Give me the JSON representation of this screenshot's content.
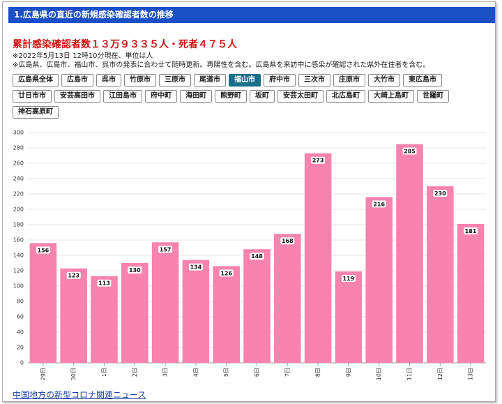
{
  "header": {
    "title": "1.広島県の直近の新規感染確認者数の推移"
  },
  "summary": "累計感染確認者数１３万９３３５人・死者４７５人",
  "notes": [
    "※2022年5月13日 12時10分現在、単位は人",
    "※広島県、広島市、福山市、呉市の発表に合わせて随時更新。再陽性を含む。広島県を来訪中に感染が確認された県外在住者を含む。"
  ],
  "buttons": [
    [
      "広島県全体",
      "広島市",
      "呉市",
      "竹原市",
      "三原市",
      "尾道市",
      "福山市",
      "府中市",
      "三次市",
      "庄原市",
      "大竹市",
      "東広島市"
    ],
    [
      "廿日市市",
      "安芸高田市",
      "江田島市",
      "府中町",
      "海田町",
      "熊野町",
      "坂町",
      "安芸太田町",
      "北広島町",
      "大崎上島町",
      "世羅町"
    ],
    [
      "神石高原町"
    ]
  ],
  "selected": "福山市",
  "chart_data": {
    "type": "bar",
    "categories": [
      "29日",
      "30日",
      "1日",
      "2日",
      "3日",
      "4日",
      "5日",
      "6日",
      "7日",
      "8日",
      "9日",
      "10日",
      "11日",
      "12日",
      "13日"
    ],
    "values": [
      156,
      123,
      113,
      130,
      157,
      134,
      126,
      148,
      168,
      273,
      119,
      216,
      285,
      230,
      181
    ],
    "color": "#f783ae",
    "ylim": [
      0,
      300
    ],
    "yticks": [
      0,
      20,
      40,
      60,
      80,
      100,
      120,
      140,
      160,
      180,
      200,
      220,
      240,
      260,
      280,
      300
    ],
    "grid": true
  },
  "link": "中国地方の新型コロナ関連ニュース"
}
